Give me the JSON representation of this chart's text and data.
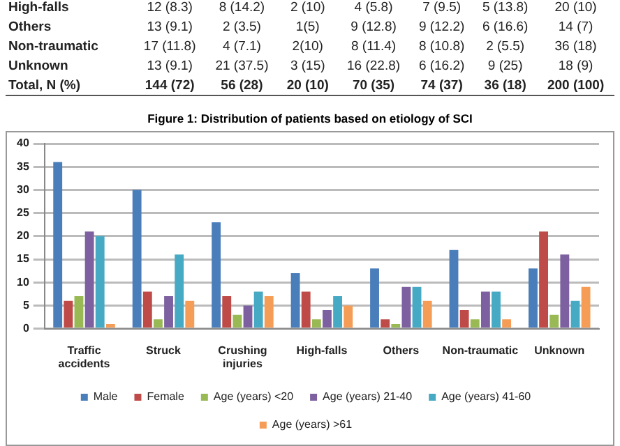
{
  "chart_data": {
    "type": "bar",
    "title": "Figure 1: Distribution of patients based on etiology of SCI",
    "categories": [
      "Traffic accidents",
      "Struck",
      "Crushing injuries",
      "High-falls",
      "Others",
      "Non-traumatic",
      "Unknown"
    ],
    "series": [
      {
        "name": "Male",
        "color": "#4a7ebb",
        "values": [
          36,
          30,
          23,
          12,
          13,
          17,
          13
        ]
      },
      {
        "name": "Female",
        "color": "#be4b48",
        "values": [
          6,
          8,
          7,
          8,
          2,
          4,
          21
        ]
      },
      {
        "name": "Age (years) <20",
        "color": "#98b954",
        "values": [
          7,
          2,
          3,
          2,
          1,
          2,
          3
        ]
      },
      {
        "name": "Age (years) 21-40",
        "color": "#7d60a0",
        "values": [
          21,
          7,
          5,
          4,
          9,
          8,
          16
        ]
      },
      {
        "name": "Age (years) 41-60",
        "color": "#46aac5",
        "values": [
          20,
          16,
          8,
          7,
          9,
          8,
          6
        ]
      },
      {
        "name": "Age (years) >61",
        "color": "#f59d56",
        "values": [
          1,
          6,
          7,
          5,
          6,
          2,
          9
        ]
      }
    ],
    "ylim": [
      0,
      40
    ],
    "yticks": [
      0,
      5,
      10,
      15,
      20,
      25,
      30,
      35,
      40
    ],
    "grid": "y",
    "legend": "bottom",
    "annotations": [
      "High-falls\t12 (8.3)\t8 (14.2)\t2 (10)\t4 (5.8)\t7 (9.5)\t5 (13.8)\t20 (10)",
      "Others\t13 (9.1)\t2 (3.5)\t1(5)\t9  (12.8)\t9 (12.2)\t6 (16.6)\t14 (7)",
      "Non-traumatic\t17 (11.8)\t4 (7.1)\t2(10)\t8 (11.4)\t8 (10.8)\t2 (5.5)\t36 (18)",
      "Unknown\t13 (9.1)\t21 (37.5)\t3 (15)\t16 (22.8)\t6 (16.2)\t9 (25)\t18 (9)",
      "Total, N (%)\t144 (72)\t56 (28)\t20 (10)\t70 (35)\t74 (37)\t36 (18)\t200 (100)"
    ]
  }
}
